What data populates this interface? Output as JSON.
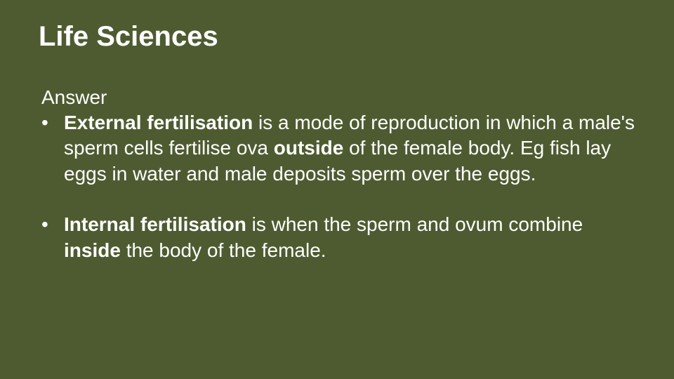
{
  "slide": {
    "background_color": "#4e5b31",
    "text_color": "#ffffff",
    "font_family": "Arial",
    "title": "Life Sciences",
    "title_fontsize": 40,
    "body_fontsize": 28,
    "answer_label": "Answer",
    "bullets": [
      {
        "segments": [
          {
            "text": "External fertilisation",
            "bold": true
          },
          {
            "text": " is a mode of reproduction in which a male's sperm cells fertilise ova ",
            "bold": false
          },
          {
            "text": "outside",
            "bold": true
          },
          {
            "text": " of the female body. Eg fish lay eggs in water and male deposits sperm over the eggs.",
            "bold": false
          }
        ]
      },
      {
        "segments": [
          {
            "text": "Internal fertilisation",
            "bold": true
          },
          {
            "text": " is when the sperm and ovum combine ",
            "bold": false
          },
          {
            "text": "inside",
            "bold": true
          },
          {
            "text": " the body of the female.",
            "bold": false
          }
        ]
      }
    ]
  }
}
